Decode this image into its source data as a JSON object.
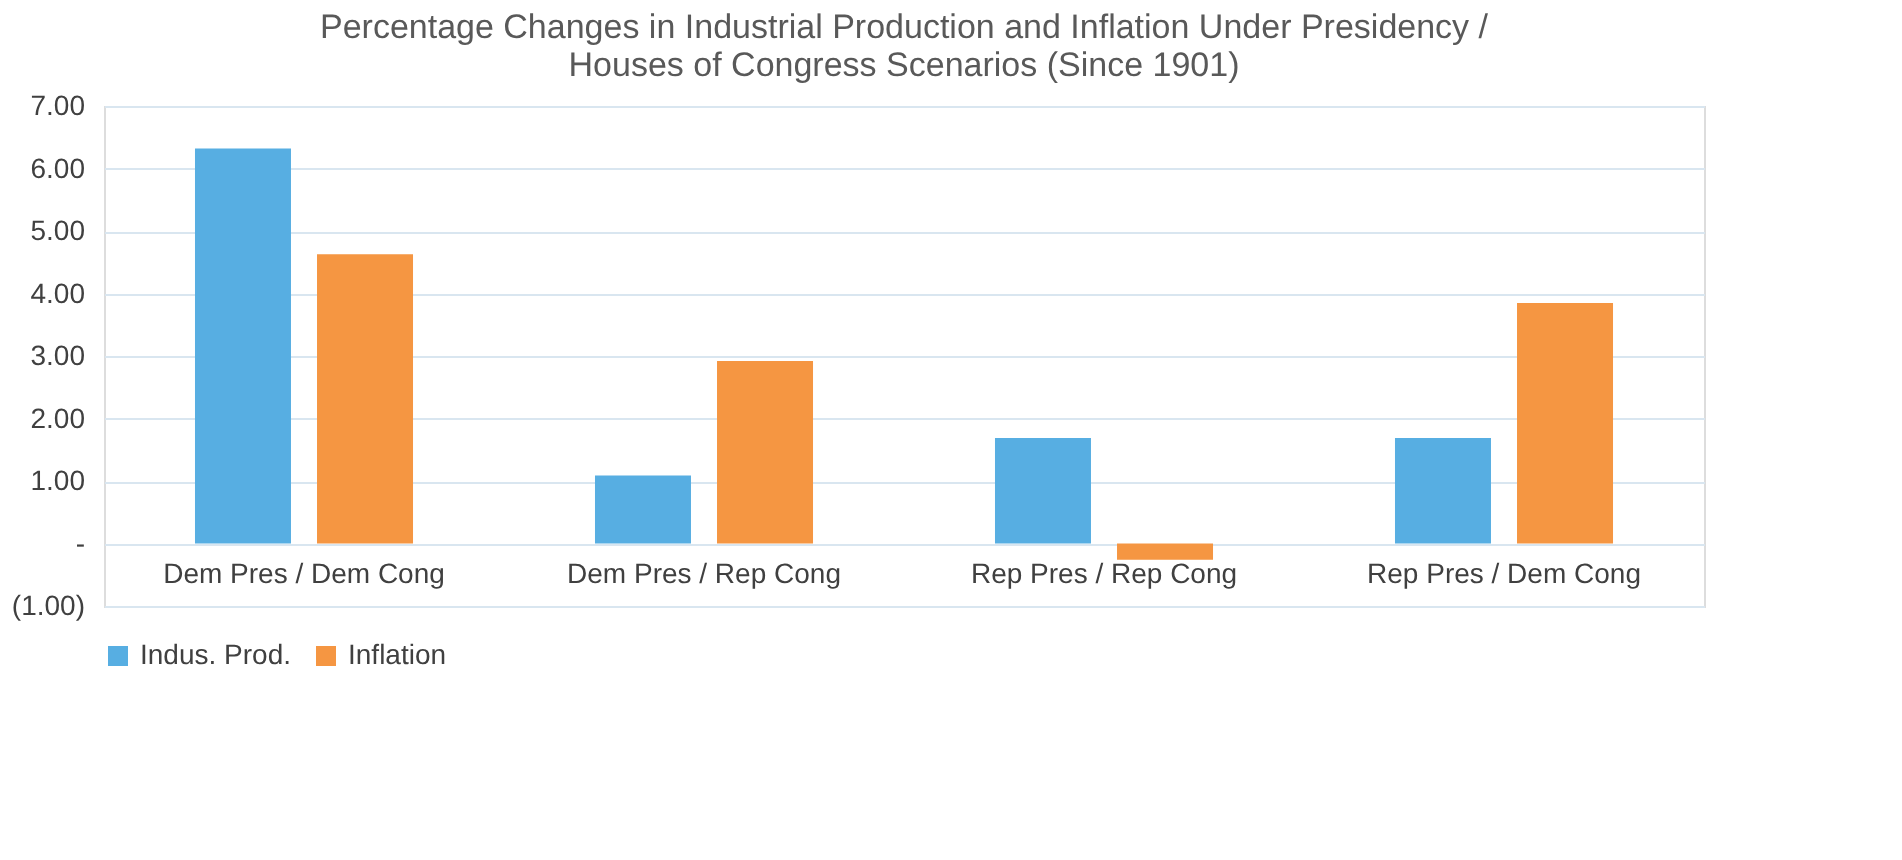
{
  "chart_data": {
    "type": "bar",
    "title": [
      "Percentage Changes in Industrial Production and Inflation Under Presidency /",
      "Houses of Congress Scenarios             (Since 1901)"
    ],
    "categories": [
      "Dem Pres / Dem Cong",
      "Dem Pres / Rep Cong",
      "Rep Pres / Rep Cong",
      "Rep Pres / Dem Cong"
    ],
    "series": [
      {
        "name": "Indus. Prod.",
        "color": "#57aee2",
        "values": [
          6.32,
          1.09,
          1.69,
          1.69
        ]
      },
      {
        "name": "Inflation",
        "color": "#f59642",
        "values": [
          4.63,
          2.92,
          -0.26,
          3.85
        ]
      }
    ],
    "ylim": [
      -1,
      7
    ],
    "yticks": [
      {
        "value": -1,
        "label": "(1.00)"
      },
      {
        "value": 0,
        "label": "-"
      },
      {
        "value": 1,
        "label": "1.00"
      },
      {
        "value": 2,
        "label": "2.00"
      },
      {
        "value": 3,
        "label": "3.00"
      },
      {
        "value": 4,
        "label": "4.00"
      },
      {
        "value": 5,
        "label": "5.00"
      },
      {
        "value": 6,
        "label": "6.00"
      },
      {
        "value": 7,
        "label": "7.00"
      }
    ],
    "grid": "y",
    "legend": "bottom"
  }
}
